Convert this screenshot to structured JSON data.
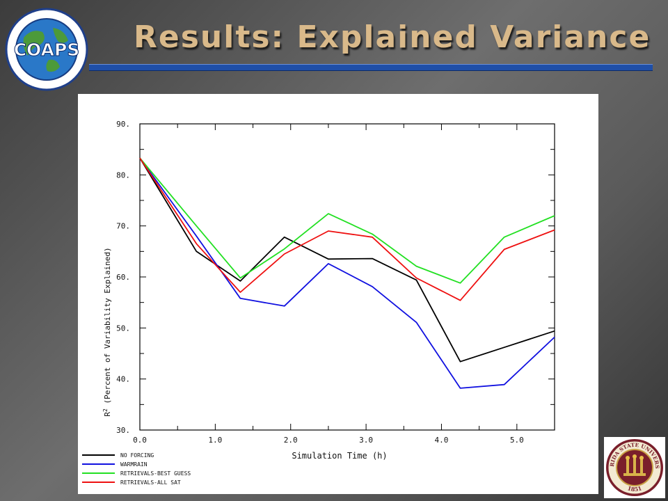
{
  "slide": {
    "title": "Results:  Explained Variance",
    "logo": {
      "text": "COAPS",
      "ring_text": "Florida State University · Center for Ocean-Atmospheric Prediction Studies"
    },
    "seal": {
      "text_top": "FLORIDA STATE UNIVERSITY",
      "year": "1851"
    }
  },
  "chart_data": {
    "type": "line",
    "title": "",
    "xlabel": "Simulation Time (h)",
    "ylabel": "R² (Percent of Variability Explained)",
    "xlim": [
      0,
      5.5
    ],
    "ylim": [
      30,
      90
    ],
    "xticks": [
      0,
      1,
      2,
      3,
      4,
      5
    ],
    "xtick_labels": [
      "0.0",
      "1.0",
      "2.0",
      "3.0",
      "4.0",
      "5.0"
    ],
    "yticks": [
      30,
      40,
      50,
      60,
      70,
      80,
      90
    ],
    "ytick_labels": [
      "30.",
      "40.",
      "50.",
      "60.",
      "70.",
      "80.",
      "90."
    ],
    "grid": false,
    "legend_position": "bottom-left",
    "x": [
      0,
      0.75,
      1.333,
      1.917,
      2.5,
      3.083,
      3.667,
      4.25,
      4.833,
      5.5
    ],
    "series": [
      {
        "name": "NO FORCING",
        "color": "#000000",
        "values": [
          83.3,
          65.0,
          59.2,
          67.8,
          63.5,
          63.6,
          59.4,
          43.4,
          46.2,
          49.4
        ]
      },
      {
        "name": "WARMRAIN",
        "color": "#1010e0",
        "values": [
          83.3,
          68.0,
          55.8,
          54.3,
          62.6,
          58.1,
          51.1,
          38.2,
          38.9,
          48.2
        ]
      },
      {
        "name": "RETRIEVALS-BEST GUESS",
        "color": "#22e022",
        "values": [
          83.3,
          70.0,
          59.8,
          65.5,
          72.4,
          68.4,
          62.1,
          58.8,
          67.8,
          72.0
        ]
      },
      {
        "name": "RETRIEVALS-ALL SAT",
        "color": "#ee1010",
        "values": [
          83.3,
          66.5,
          57.0,
          64.5,
          69.0,
          67.8,
          59.8,
          55.4,
          65.4,
          69.2
        ]
      }
    ]
  }
}
